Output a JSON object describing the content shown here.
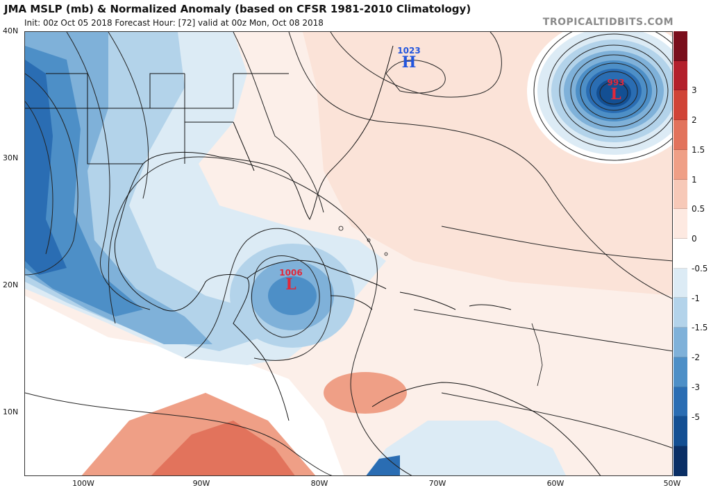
{
  "header": {
    "title": "JMA MSLP (mb) & Normalized Anomaly (based on CFSR 1981-2010 Climatology)",
    "subtitle": "Init: 00z Oct 05 2018   Forecast Hour: [72]   valid at 00z Mon, Oct 08 2018",
    "brand": "TROPICALTIDBITS.COM"
  },
  "axes": {
    "lat_labels": [
      "40N",
      "30N",
      "20N",
      "10N"
    ],
    "lon_labels": [
      "100W",
      "90W",
      "80W",
      "70W",
      "60W",
      "50W"
    ]
  },
  "pressure_centers": [
    {
      "value": "1023",
      "letter": "H",
      "color": "#2255dd"
    },
    {
      "value": "993",
      "letter": "L",
      "color": "#e0283a"
    },
    {
      "value": "1006",
      "letter": "L",
      "color": "#e0283a"
    }
  ],
  "colorbar": {
    "labels": [
      "3",
      "2",
      "1.5",
      "1",
      "0.5",
      "0",
      "-0.5",
      "-1",
      "-1.5",
      "-2",
      "-3",
      "-5"
    ],
    "colors": [
      "#7a0e1c",
      "#b3202c",
      "#d04437",
      "#e2735c",
      "#ef9f86",
      "#f7c9b8",
      "#fde9e1",
      "#ffffff",
      "#dcebf5",
      "#b3d3ea",
      "#7fb1d9",
      "#4d8fc7",
      "#2a6db3",
      "#134f93",
      "#0a2f66"
    ]
  }
}
